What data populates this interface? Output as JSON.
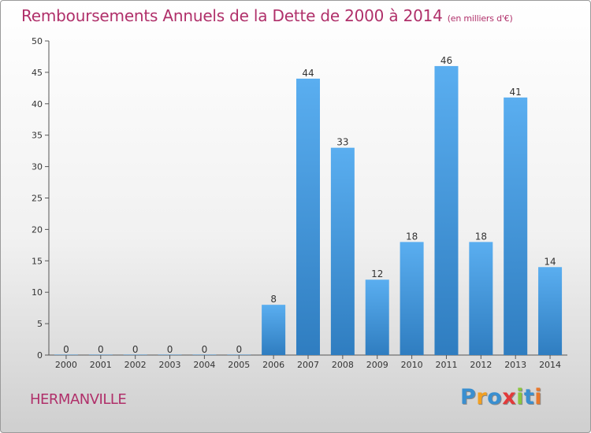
{
  "title": "Remboursements Annuels de la Dette de 2000 à 2014",
  "unit": "(en milliers d'€)",
  "city": "HERMANVILLE",
  "logo": {
    "letters": [
      "P",
      "r",
      "o",
      "x",
      "i",
      "t",
      "i"
    ],
    "colors": [
      "#3a8fd0",
      "#f2a022",
      "#3a8fd0",
      "#e23a3a",
      "#8cc63f",
      "#3a8fd0",
      "#e8782c"
    ]
  },
  "colors": {
    "bar_top": "#5aaef0",
    "bar_bottom": "#2f7dc0",
    "title": "#b0306a"
  },
  "chart_data": {
    "type": "bar",
    "categories": [
      "2000",
      "2001",
      "2002",
      "2003",
      "2004",
      "2005",
      "2006",
      "2007",
      "2008",
      "2009",
      "2010",
      "2011",
      "2012",
      "2013",
      "2014"
    ],
    "values": [
      0,
      0,
      0,
      0,
      0,
      0,
      8,
      44,
      33,
      12,
      18,
      46,
      18,
      41,
      14
    ],
    "ylim": [
      0,
      50
    ],
    "yticks": [
      0,
      5,
      10,
      15,
      20,
      25,
      30,
      35,
      40,
      45,
      50
    ],
    "grid": false,
    "legend": "none"
  }
}
